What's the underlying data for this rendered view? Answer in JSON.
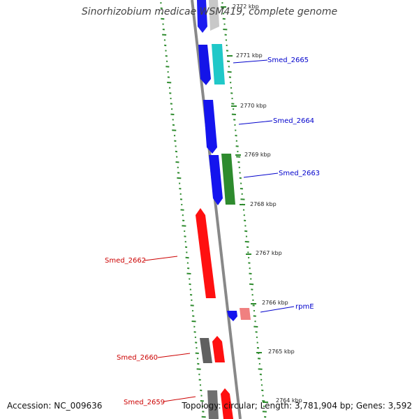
{
  "title": "Sinorhizobium medicae WSM419, complete genome",
  "accession": "Accession: NC_009636",
  "summary": "Topology: circular; Length: 3,781,904 bp; Genes: 3,592",
  "colors": {
    "forward_strand": "#ff0000",
    "reverse_strand": "#0000ff",
    "backbone": "#888888",
    "gc_ticks": "#2e8b2e",
    "label_reverse": "#0000cc",
    "label_forward": "#cc0000"
  },
  "ticks": [
    "2772 kbp",
    "2771 kbp",
    "2770 kbp",
    "2769 kbp",
    "2768 kbp",
    "2767 kbp",
    "2766 kbp",
    "2765 kbp",
    "2764 kbp"
  ],
  "gene_labels": {
    "smed_2665": "Smed_2665",
    "smed_2664": "Smed_2664",
    "smed_2663": "Smed_2663",
    "smed_2662": "Smed_2662",
    "rpme": "rpmE",
    "smed_2660": "Smed_2660",
    "smed_2659": "Smed_2659"
  }
}
